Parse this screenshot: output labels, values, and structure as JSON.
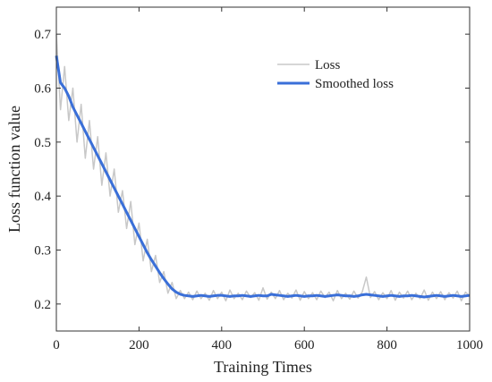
{
  "chart_data": {
    "type": "line",
    "xlabel": "Training Times",
    "ylabel": "Loss function value",
    "x": [
      0,
      10,
      20,
      30,
      40,
      50,
      60,
      70,
      80,
      90,
      100,
      110,
      120,
      130,
      140,
      150,
      160,
      170,
      180,
      190,
      200,
      210,
      220,
      230,
      240,
      250,
      260,
      270,
      280,
      290,
      300,
      310,
      320,
      330,
      340,
      350,
      360,
      370,
      380,
      390,
      400,
      410,
      420,
      430,
      440,
      450,
      460,
      470,
      480,
      490,
      500,
      510,
      520,
      530,
      540,
      550,
      560,
      570,
      580,
      590,
      600,
      610,
      620,
      630,
      640,
      650,
      660,
      670,
      680,
      690,
      700,
      710,
      720,
      730,
      740,
      750,
      760,
      770,
      780,
      790,
      800,
      810,
      820,
      830,
      840,
      850,
      860,
      870,
      880,
      890,
      900,
      910,
      920,
      930,
      940,
      950,
      960,
      970,
      980,
      990,
      1000
    ],
    "series": [
      {
        "name": "Loss",
        "color": "#c8c8c8",
        "width": 1.5,
        "values": [
          0.7,
          0.56,
          0.64,
          0.54,
          0.6,
          0.5,
          0.57,
          0.47,
          0.54,
          0.45,
          0.51,
          0.42,
          0.48,
          0.4,
          0.45,
          0.37,
          0.41,
          0.34,
          0.39,
          0.31,
          0.35,
          0.28,
          0.32,
          0.26,
          0.29,
          0.24,
          0.26,
          0.22,
          0.24,
          0.21,
          0.225,
          0.21,
          0.222,
          0.208,
          0.224,
          0.21,
          0.22,
          0.207,
          0.225,
          0.21,
          0.222,
          0.206,
          0.226,
          0.21,
          0.22,
          0.208,
          0.224,
          0.212,
          0.221,
          0.207,
          0.23,
          0.209,
          0.222,
          0.21,
          0.225,
          0.208,
          0.22,
          0.211,
          0.226,
          0.207,
          0.223,
          0.21,
          0.221,
          0.208,
          0.224,
          0.212,
          0.222,
          0.206,
          0.225,
          0.21,
          0.22,
          0.209,
          0.224,
          0.211,
          0.222,
          0.25,
          0.212,
          0.223,
          0.208,
          0.221,
          0.21,
          0.225,
          0.207,
          0.222,
          0.211,
          0.224,
          0.208,
          0.22,
          0.21,
          0.226,
          0.207,
          0.222,
          0.21,
          0.223,
          0.208,
          0.221,
          0.211,
          0.224,
          0.206,
          0.222,
          0.215
        ]
      },
      {
        "name": "Smoothed loss",
        "color": "#3a6fd8",
        "width": 3,
        "values": [
          0.66,
          0.61,
          0.6,
          0.585,
          0.565,
          0.55,
          0.535,
          0.52,
          0.505,
          0.49,
          0.475,
          0.46,
          0.445,
          0.43,
          0.415,
          0.4,
          0.385,
          0.37,
          0.355,
          0.34,
          0.325,
          0.31,
          0.295,
          0.282,
          0.27,
          0.258,
          0.247,
          0.237,
          0.228,
          0.222,
          0.218,
          0.216,
          0.215,
          0.214,
          0.215,
          0.216,
          0.215,
          0.214,
          0.215,
          0.216,
          0.216,
          0.215,
          0.214,
          0.215,
          0.215,
          0.216,
          0.215,
          0.214,
          0.215,
          0.216,
          0.215,
          0.215,
          0.218,
          0.217,
          0.216,
          0.215,
          0.214,
          0.215,
          0.216,
          0.215,
          0.214,
          0.215,
          0.215,
          0.216,
          0.215,
          0.214,
          0.215,
          0.216,
          0.217,
          0.216,
          0.215,
          0.215,
          0.214,
          0.215,
          0.217,
          0.218,
          0.217,
          0.216,
          0.215,
          0.214,
          0.215,
          0.216,
          0.215,
          0.214,
          0.215,
          0.215,
          0.216,
          0.215,
          0.214,
          0.213,
          0.214,
          0.215,
          0.216,
          0.215,
          0.214,
          0.215,
          0.216,
          0.215,
          0.214,
          0.215,
          0.216
        ]
      }
    ],
    "xlim": [
      0,
      1000
    ],
    "xticks": [
      0,
      200,
      400,
      600,
      800,
      1000
    ],
    "ylim": [
      0.15,
      0.75
    ],
    "yticks": [
      0.2,
      0.3,
      0.4,
      0.5,
      0.6,
      0.7
    ],
    "legend": "upper right"
  }
}
